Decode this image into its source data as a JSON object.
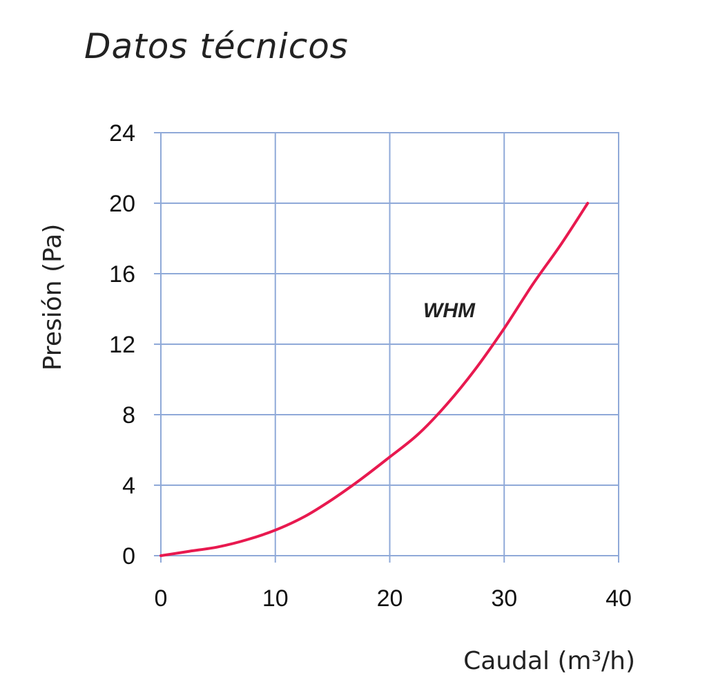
{
  "page": {
    "title": "Datos técnicos"
  },
  "chart_data": {
    "type": "line",
    "title": "",
    "xlabel": "Caudal (m³/h)",
    "ylabel": "Presión (Pa)",
    "xlim": [
      0,
      40
    ],
    "ylim": [
      0,
      24
    ],
    "x_ticks": [
      0,
      10,
      20,
      30,
      40
    ],
    "y_ticks": [
      0,
      4,
      8,
      12,
      16,
      20,
      24
    ],
    "x_tick_labels": [
      "0",
      "10",
      "20",
      "30",
      "40"
    ],
    "y_tick_labels": [
      "0",
      "4",
      "8",
      "12",
      "16",
      "20",
      "24"
    ],
    "grid": true,
    "legend": "none",
    "colors": {
      "line": "#e8194f",
      "grid": "#8fa9d8",
      "axis": "#8fa9d8"
    },
    "series": [
      {
        "name": "WHM",
        "x": [
          0,
          2.5,
          5,
          7.5,
          10,
          12.5,
          15,
          17.5,
          20,
          22.5,
          25,
          27.5,
          30,
          32.5,
          35,
          37.3
        ],
        "y": [
          0,
          0.25,
          0.5,
          0.9,
          1.45,
          2.2,
          3.2,
          4.35,
          5.6,
          6.9,
          8.6,
          10.6,
          12.9,
          15.4,
          17.7,
          20
        ]
      }
    ]
  }
}
